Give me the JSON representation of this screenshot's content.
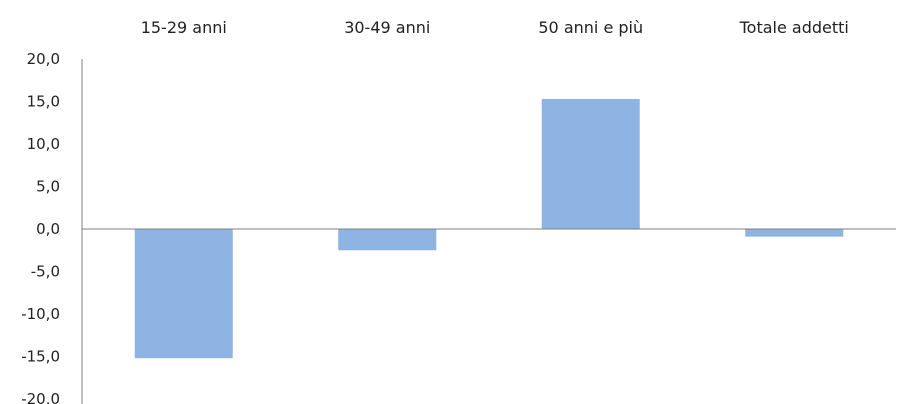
{
  "chart_data": {
    "type": "bar",
    "categories": [
      "15-29 anni",
      "30-49 anni",
      "50 anni e più",
      "Totale addetti"
    ],
    "values": [
      -15.2,
      -2.5,
      15.3,
      -0.9
    ],
    "ylim": [
      -20,
      20
    ],
    "yticks": [
      "20,0",
      "15,0",
      "10,0",
      "5,0",
      "0,0",
      "-5,0",
      "-10,0",
      "-15,0",
      "-20,0"
    ],
    "category_labels_position": "top",
    "grid": false,
    "legend": "none",
    "title": "",
    "xlabel": "",
    "ylabel": "",
    "bar_color": "#8eb4e3",
    "axis_color": "#7f7f7f"
  }
}
